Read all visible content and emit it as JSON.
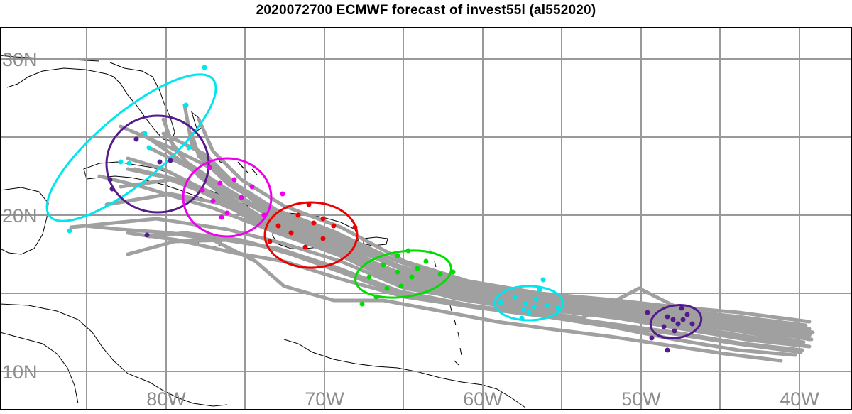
{
  "title": "2020072700 ECMWF forecast of invest55l (al552020)",
  "map": {
    "lat_labels": [
      "30N",
      "20N",
      "10N"
    ],
    "lon_labels": [
      "80W",
      "70W",
      "60W",
      "50W",
      "40W"
    ],
    "label_color": "#8c8c8c",
    "grid_color": "#999999",
    "track_color": "#a0a0a0"
  },
  "legend_colors": {
    "cyan": "#00e5ee",
    "purple": "#551a8b",
    "magenta": "#ee00ee",
    "red": "#ee0000",
    "green": "#00dd00"
  }
}
